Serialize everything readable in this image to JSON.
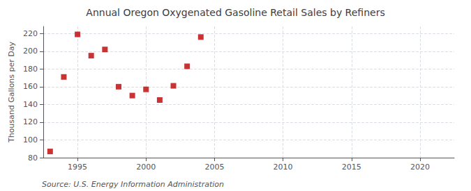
{
  "chart_data": {
    "type": "scatter",
    "title": "Annual Oregon Oxygenated Gasoline Retail Sales by Refiners",
    "ylabel": "Thousand Gallons per Day",
    "annotations": [
      "Source: U.S. Energy Information Administration"
    ],
    "x": [
      1993,
      1994,
      1995,
      1996,
      1997,
      1998,
      1999,
      2000,
      2001,
      2002,
      2003,
      2004
    ],
    "values": [
      87,
      171,
      219,
      195,
      202,
      160,
      150,
      157,
      145,
      161,
      183,
      216
    ],
    "color": "#bb0000",
    "marker": "square",
    "xlim": [
      1992.5,
      2022.5
    ],
    "xticks": [
      1995,
      2000,
      2005,
      2010,
      2015,
      2020
    ],
    "ylim": [
      80,
      228
    ],
    "yticks": [
      80,
      100,
      120,
      140,
      160,
      180,
      200,
      220
    ],
    "grid": true
  }
}
